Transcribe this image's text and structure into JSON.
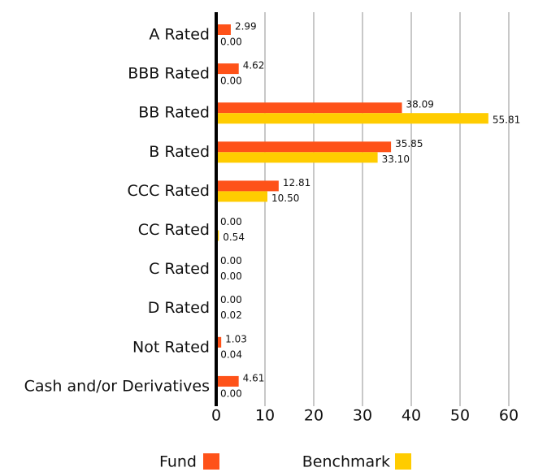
{
  "chart_data": {
    "type": "bar",
    "orientation": "horizontal",
    "categories": [
      "A Rated",
      "BBB Rated",
      "BB Rated",
      "B Rated",
      "CCC Rated",
      "CC Rated",
      "C Rated",
      "D Rated",
      "Not Rated",
      "Cash and/or Derivatives"
    ],
    "series": [
      {
        "name": "Fund",
        "color": "#fe5219",
        "values": [
          2.99,
          4.62,
          38.09,
          35.85,
          12.81,
          0,
          0,
          0,
          1.03,
          4.61
        ],
        "value_labels": [
          "2.99",
          "4.62",
          "38.09",
          "35.85",
          "12.81",
          "0.00",
          "0.00",
          "0.00",
          "1.03",
          "4.61"
        ]
      },
      {
        "name": "Benchmark",
        "color": "#ffcc00",
        "values": [
          0,
          0,
          55.81,
          33.1,
          10.5,
          0.54,
          0,
          0.02,
          0.04,
          0
        ],
        "value_labels": [
          "0.00",
          "0.00",
          "55.81",
          "33.10",
          "10.50",
          "0.54",
          "0.00",
          "0.02",
          "0.04",
          "0.00"
        ]
      }
    ],
    "xlim": [
      0,
      60
    ],
    "xticks": [
      0,
      10,
      20,
      30,
      40,
      50,
      60
    ],
    "grid": true
  }
}
